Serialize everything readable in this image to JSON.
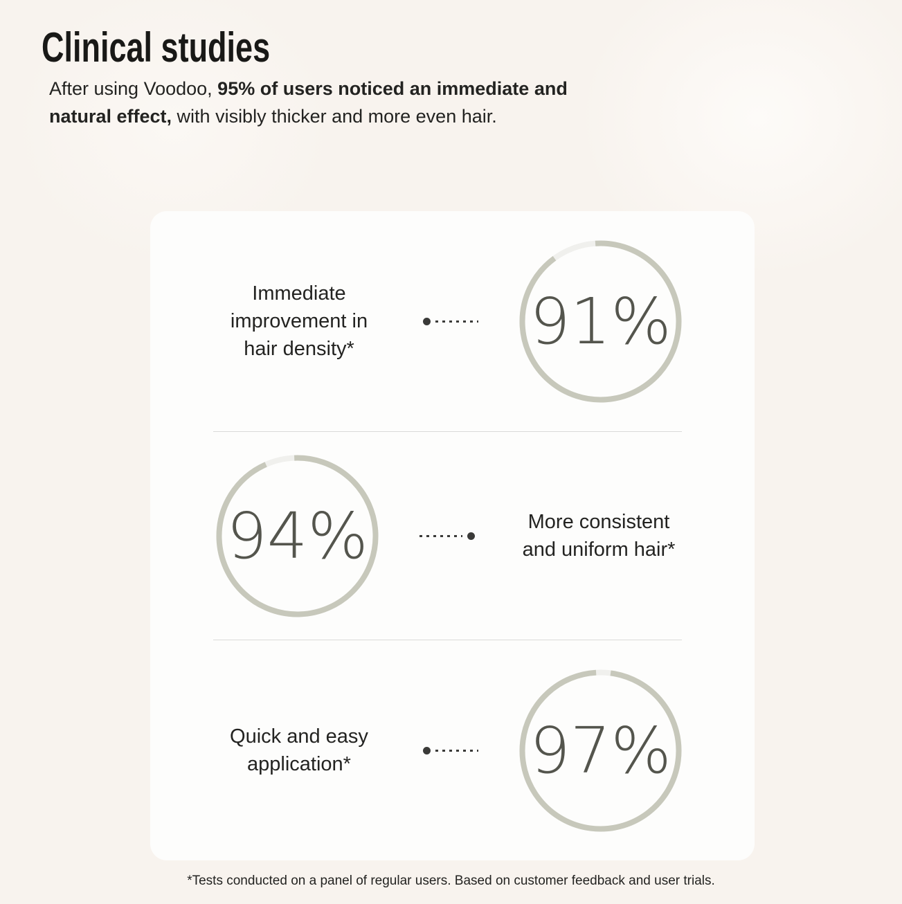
{
  "colors": {
    "background": "#f8f3ee",
    "card": "#fdfdfc",
    "heading_text": "#191917",
    "body_text": "#232321",
    "percent_text": "#54554d",
    "ring": "#c7c8bb",
    "ring_gap": "#f0f0ed",
    "divider": "#dadad8",
    "connector": "#3a3a38"
  },
  "header": {
    "title": "Clinical studies"
  },
  "intro": {
    "part1": "After using Voodoo, ",
    "part2_bold": "95% of users noticed an immediate and natural effect,",
    "part3": " with visibly thicker and more even hair."
  },
  "stats": [
    {
      "label": "Immediate improvement in hair density*",
      "value": 91,
      "display": "91%"
    },
    {
      "label": "More consistent and uniform hair*",
      "value": 94,
      "display": "94%"
    },
    {
      "label": "Quick and easy application*",
      "value": 97,
      "display": "97%"
    }
  ],
  "footnote": "*Tests conducted on a panel of regular users. Based on customer feedback and user trials.",
  "chart_data": [
    {
      "type": "donut-progress",
      "title": "Immediate improvement in hair density*",
      "value_pct": 91,
      "ring_color": "#c7c8bb",
      "track_color": "#f0f0ed",
      "center_label": "91%"
    },
    {
      "type": "donut-progress",
      "title": "More consistent and uniform hair*",
      "value_pct": 94,
      "ring_color": "#c7c8bb",
      "track_color": "#f0f0ed",
      "center_label": "94%"
    },
    {
      "type": "donut-progress",
      "title": "Quick and easy application*",
      "value_pct": 97,
      "ring_color": "#c7c8bb",
      "track_color": "#f0f0ed",
      "center_label": "97%"
    }
  ]
}
